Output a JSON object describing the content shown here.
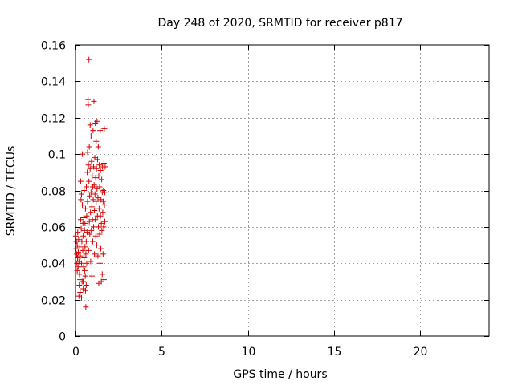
{
  "chart_data": {
    "type": "scatter",
    "title": "Day 248 of 2020, SRMTID for receiver p817",
    "xlabel": "GPS time / hours",
    "ylabel": "SRMTID / TECUs",
    "xlim": [
      0,
      24
    ],
    "ylim": [
      0,
      0.16
    ],
    "xticks": [
      0,
      5,
      10,
      15,
      20
    ],
    "xtick_labels": [
      "0",
      "5",
      "10",
      "15",
      "20"
    ],
    "yticks": [
      0,
      0.02,
      0.04,
      0.06,
      0.08,
      0.1,
      0.12,
      0.14,
      0.16
    ],
    "ytick_labels": [
      "0",
      "0.02",
      "0.04",
      "0.06",
      "0.08",
      "0.1",
      "0.12",
      "0.14",
      "0.16"
    ],
    "grid": true,
    "marker": "+",
    "color": "#d40000",
    "series": [
      {
        "name": "SRMTID",
        "points": [
          [
            0.02,
            0.055
          ],
          [
            0.03,
            0.048
          ],
          [
            0.05,
            0.052
          ],
          [
            0.07,
            0.045
          ],
          [
            0.08,
            0.04
          ],
          [
            0.1,
            0.05
          ],
          [
            0.1,
            0.036
          ],
          [
            0.12,
            0.043
          ],
          [
            0.13,
            0.057
          ],
          [
            0.15,
            0.038
          ],
          [
            0.16,
            0.046
          ],
          [
            0.18,
            0.053
          ],
          [
            0.2,
            0.041
          ],
          [
            0.2,
            0.022
          ],
          [
            0.22,
            0.028
          ],
          [
            0.23,
            0.034
          ],
          [
            0.25,
            0.049
          ],
          [
            0.26,
            0.031
          ],
          [
            0.27,
            0.024
          ],
          [
            0.28,
            0.044
          ],
          [
            0.3,
            0.085
          ],
          [
            0.3,
            0.064
          ],
          [
            0.32,
            0.075
          ],
          [
            0.33,
            0.059
          ],
          [
            0.35,
            0.078
          ],
          [
            0.35,
            0.04
          ],
          [
            0.37,
            0.052
          ],
          [
            0.38,
            0.03
          ],
          [
            0.4,
            0.072
          ],
          [
            0.4,
            0.1
          ],
          [
            0.42,
            0.047
          ],
          [
            0.43,
            0.062
          ],
          [
            0.45,
            0.026
          ],
          [
            0.45,
            0.055
          ],
          [
            0.47,
            0.038
          ],
          [
            0.48,
            0.065
          ],
          [
            0.5,
            0.043
          ],
          [
            0.5,
            0.08
          ],
          [
            0.52,
            0.058
          ],
          [
            0.53,
            0.036
          ],
          [
            0.55,
            0.062
          ],
          [
            0.55,
            0.049
          ],
          [
            0.57,
            0.033
          ],
          [
            0.58,
            0.07
          ],
          [
            0.6,
            0.045
          ],
          [
            0.6,
            0.016
          ],
          [
            0.62,
            0.052
          ],
          [
            0.63,
            0.082
          ],
          [
            0.65,
            0.04
          ],
          [
            0.65,
            0.066
          ],
          [
            0.67,
            0.057
          ],
          [
            0.68,
            0.09
          ],
          [
            0.7,
            0.074
          ],
          [
            0.7,
            0.101
          ],
          [
            0.72,
            0.061
          ],
          [
            0.73,
            0.13
          ],
          [
            0.74,
            0.127
          ],
          [
            0.75,
            0.094
          ],
          [
            0.76,
            0.047
          ],
          [
            0.78,
            0.152
          ],
          [
            0.78,
            0.085
          ],
          [
            0.8,
            0.063
          ],
          [
            0.8,
            0.104
          ],
          [
            0.82,
            0.077
          ],
          [
            0.83,
            0.056
          ],
          [
            0.85,
            0.116
          ],
          [
            0.85,
            0.092
          ],
          [
            0.87,
            0.068
          ],
          [
            0.88,
            0.041
          ],
          [
            0.9,
            0.11
          ],
          [
            0.9,
            0.079
          ],
          [
            0.92,
            0.058
          ],
          [
            0.93,
            0.096
          ],
          [
            0.95,
            0.071
          ],
          [
            0.95,
            0.033
          ],
          [
            0.97,
            0.088
          ],
          [
            0.98,
            0.064
          ],
          [
            1.0,
            0.082
          ],
          [
            1.0,
            0.052
          ],
          [
            1.02,
            0.113
          ],
          [
            1.03,
            0.075
          ],
          [
            1.05,
            0.093
          ],
          [
            1.05,
            0.06
          ],
          [
            1.07,
            0.129
          ],
          [
            1.08,
            0.083
          ],
          [
            1.1,
            0.069
          ],
          [
            1.1,
            0.045
          ],
          [
            1.12,
            0.098
          ],
          [
            1.13,
            0.078
          ],
          [
            1.15,
            0.117
          ],
          [
            1.15,
            0.064
          ],
          [
            1.17,
            0.087
          ],
          [
            1.18,
            0.055
          ],
          [
            1.2,
            0.107
          ],
          [
            1.2,
            0.074
          ],
          [
            1.22,
            0.092
          ],
          [
            1.23,
            0.05
          ],
          [
            1.25,
            0.118
          ],
          [
            1.25,
            0.081
          ],
          [
            1.27,
            0.066
          ],
          [
            1.28,
            0.097
          ],
          [
            1.3,
            0.044
          ],
          [
            1.3,
            0.076
          ],
          [
            1.32,
            0.104
          ],
          [
            1.33,
            0.06
          ],
          [
            1.35,
            0.088
          ],
          [
            1.35,
            0.029
          ],
          [
            1.37,
            0.07
          ],
          [
            1.38,
            0.094
          ],
          [
            1.4,
            0.056
          ],
          [
            1.4,
            0.082
          ],
          [
            1.42,
            0.04
          ],
          [
            1.43,
            0.113
          ],
          [
            1.45,
            0.066
          ],
          [
            1.45,
            0.091
          ],
          [
            1.47,
            0.048
          ],
          [
            1.48,
            0.075
          ],
          [
            1.5,
            0.03
          ],
          [
            1.5,
            0.062
          ],
          [
            1.52,
            0.086
          ],
          [
            1.53,
            0.058
          ],
          [
            1.55,
            0.079
          ],
          [
            1.55,
            0.034
          ],
          [
            1.57,
            0.093
          ],
          [
            1.58,
            0.068
          ],
          [
            1.6,
            0.045
          ],
          [
            1.6,
            0.074
          ],
          [
            1.62,
            0.08
          ],
          [
            1.63,
            0.06
          ],
          [
            1.65,
            0.095
          ],
          [
            1.65,
            0.031
          ],
          [
            1.67,
            0.114
          ],
          [
            1.68,
            0.072
          ],
          [
            1.7,
            0.063
          ],
          [
            1.7,
            0.079
          ],
          [
            1.72,
            0.093
          ],
          [
            0.44,
            0.03
          ],
          [
            0.58,
            0.025
          ],
          [
            0.62,
            0.028
          ],
          [
            0.35,
            0.021
          ]
        ]
      }
    ]
  }
}
